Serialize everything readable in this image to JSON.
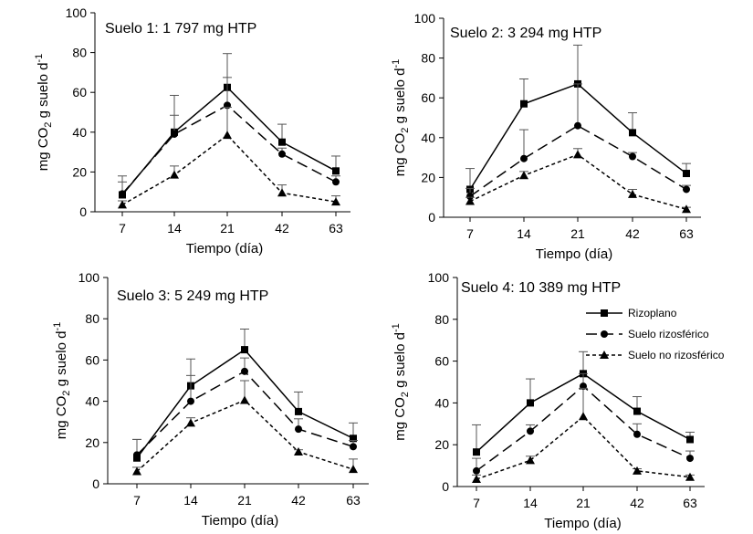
{
  "chart_data": [
    {
      "type": "line",
      "title": "Suelo 1: 1 797 mg HTP",
      "xlabel": "Tiempo (día)",
      "ylabel": "mg CO2 g suelo d-1",
      "ylabel_parts": {
        "main": "mg CO",
        "sub": "2",
        "mid": " g suelo d",
        "sup": "-1"
      },
      "categories": [
        "7",
        "14",
        "21",
        "42",
        "63"
      ],
      "ylim": [
        0,
        100
      ],
      "yticks": [
        "0",
        "20",
        "40",
        "60",
        "80",
        "100"
      ],
      "series": [
        {
          "name": "Rizoplano",
          "marker": "square",
          "dash": "solid",
          "values": [
            8.5,
            40,
            62.5,
            35,
            20.5
          ],
          "errors": [
            9.5,
            18.5,
            17,
            9,
            7.5
          ]
        },
        {
          "name": "Suelo rizosférico",
          "marker": "circle",
          "dash": "long",
          "values": [
            9,
            39,
            53.5,
            29,
            15
          ],
          "errors": [
            6,
            9.5,
            14,
            3,
            3
          ]
        },
        {
          "name": "Suelo no rizosférico",
          "marker": "triangle",
          "dash": "short",
          "values": [
            3.5,
            18.5,
            38.5,
            9.5,
            5
          ],
          "errors": [
            2,
            4.5,
            14,
            4,
            3
          ]
        }
      ]
    },
    {
      "type": "line",
      "title": "Suelo 2: 3 294 mg HTP",
      "xlabel": "Tiempo (día)",
      "ylabel": "mg CO2 g suelo d-1",
      "ylabel_parts": {
        "main": "mg CO",
        "sub": "2",
        "mid": " g suelo d",
        "sup": "-1"
      },
      "categories": [
        "7",
        "14",
        "21",
        "42",
        "63"
      ],
      "ylim": [
        0,
        100
      ],
      "yticks": [
        "0",
        "20",
        "40",
        "60",
        "80",
        "100"
      ],
      "series": [
        {
          "name": "Rizoplano",
          "marker": "square",
          "dash": "solid",
          "values": [
            14,
            57,
            67,
            42.5,
            22
          ],
          "errors": [
            10.5,
            12.5,
            19.5,
            10,
            5
          ]
        },
        {
          "name": "Suelo rizosférico",
          "marker": "circle",
          "dash": "long",
          "values": [
            10.5,
            29.5,
            46,
            30.5,
            14
          ],
          "errors": [
            4,
            14.5,
            21,
            2,
            2
          ]
        },
        {
          "name": "Suelo no rizosférico",
          "marker": "triangle",
          "dash": "short",
          "values": [
            8,
            21,
            31.5,
            11.5,
            4
          ],
          "errors": [
            2,
            2,
            3,
            2.5,
            1
          ]
        }
      ]
    },
    {
      "type": "line",
      "title": "Suelo 3: 5 249 mg HTP",
      "xlabel": "Tiempo (día)",
      "ylabel": "mg CO2 g suelo d-1",
      "ylabel_parts": {
        "main": "mg CO",
        "sub": "2",
        "mid": " g suelo d",
        "sup": "-1"
      },
      "categories": [
        "7",
        "14",
        "21",
        "42",
        "63"
      ],
      "ylim": [
        0,
        100
      ],
      "yticks": [
        "0",
        "20",
        "40",
        "60",
        "80",
        "100"
      ],
      "series": [
        {
          "name": "Rizoplano",
          "marker": "square",
          "dash": "solid",
          "values": [
            12.5,
            47.5,
            65,
            35,
            22
          ],
          "errors": [
            9,
            13,
            10,
            9.5,
            7.5
          ]
        },
        {
          "name": "Suelo rizosférico",
          "marker": "circle",
          "dash": "long",
          "values": [
            14,
            40,
            54.5,
            26.5,
            18
          ],
          "errors": [
            7.5,
            12.5,
            6.5,
            5,
            3
          ]
        },
        {
          "name": "Suelo no rizosférico",
          "marker": "triangle",
          "dash": "short",
          "values": [
            6,
            29.5,
            40.5,
            15.5,
            7
          ],
          "errors": [
            2,
            2.5,
            9.5,
            1,
            5
          ]
        }
      ]
    },
    {
      "type": "line",
      "title": "Suelo 4: 10 389 mg HTP",
      "xlabel": "Tiempo (día)",
      "ylabel": "mg CO2 g suelo d-1",
      "ylabel_parts": {
        "main": "mg CO",
        "sub": "2",
        "mid": " g suelo d",
        "sup": "-1"
      },
      "categories": [
        "7",
        "14",
        "21",
        "42",
        "63"
      ],
      "ylim": [
        0,
        100
      ],
      "yticks": [
        "0",
        "20",
        "40",
        "60",
        "80",
        "100"
      ],
      "legend": {
        "position": "top-right",
        "entries": [
          "Rizoplano",
          "Suelo rizosférico",
          "Suelo no rizosférico"
        ]
      },
      "series": [
        {
          "name": "Rizoplano",
          "marker": "square",
          "dash": "solid",
          "values": [
            16.5,
            40,
            54,
            36,
            22.5
          ],
          "errors": [
            13,
            11.5,
            10.5,
            7,
            3.5
          ]
        },
        {
          "name": "Suelo rizosférico",
          "marker": "circle",
          "dash": "long",
          "values": [
            7.5,
            26.5,
            48,
            25,
            13.5
          ],
          "errors": [
            6,
            3,
            6,
            5,
            3.5
          ]
        },
        {
          "name": "Suelo no rizosférico",
          "marker": "triangle",
          "dash": "short",
          "values": [
            3.5,
            12.5,
            33.5,
            7.5,
            4.5
          ],
          "errors": [
            2,
            2,
            13.5,
            1,
            1
          ]
        }
      ]
    }
  ]
}
